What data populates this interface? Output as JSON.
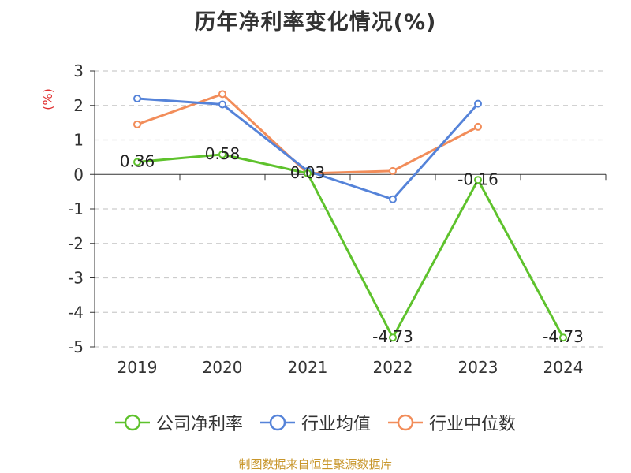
{
  "title": "历年净利率变化情况(%)",
  "source": "制图数据来自恒生聚源数据库",
  "chart_data": {
    "type": "line",
    "ylabel": "(%)",
    "ylim": [
      -5,
      3
    ],
    "yticks": [
      3,
      2,
      1,
      0,
      -1,
      -2,
      -3,
      -4,
      -5
    ],
    "categories": [
      "2019",
      "2020",
      "2021",
      "2022",
      "2023",
      "2024"
    ],
    "grid": true,
    "legend_position": "bottom",
    "series": [
      {
        "name": "公司净利率",
        "color": "#5ec22c",
        "values": [
          0.36,
          0.58,
          0.03,
          -4.73,
          -0.16,
          -4.73
        ],
        "labels": [
          "0.36",
          "0.58",
          "0.03",
          "-4.73",
          "-0.16",
          "-4.73"
        ]
      },
      {
        "name": "行业均值",
        "color": "#5583d9",
        "values": [
          2.2,
          2.03,
          0.1,
          -0.72,
          2.05,
          null
        ]
      },
      {
        "name": "行业中位数",
        "color": "#f28d5a",
        "values": [
          1.45,
          2.33,
          0.03,
          0.1,
          1.38,
          null
        ]
      }
    ]
  }
}
